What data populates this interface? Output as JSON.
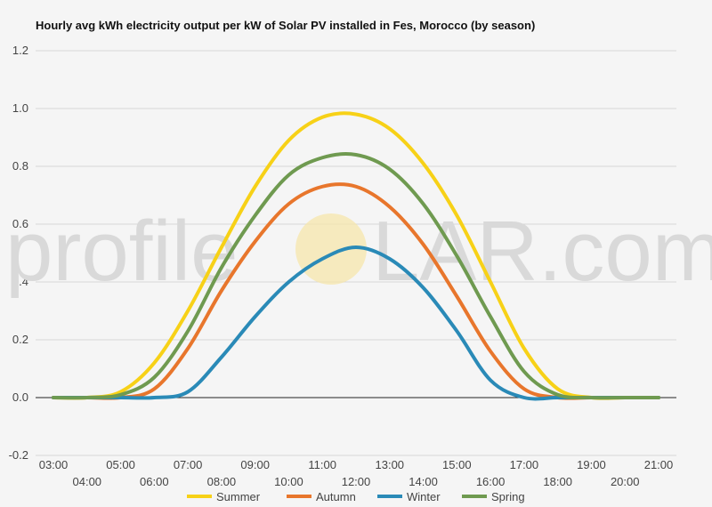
{
  "chart_data": {
    "type": "line",
    "title": "Hourly avg kWh electricity output per kW of Solar PV installed in Fes, Morocco (by season)",
    "watermark": {
      "left": "profile",
      "right": "LAR.com"
    },
    "x": [
      "03:00",
      "04:00",
      "05:00",
      "06:00",
      "07:00",
      "08:00",
      "09:00",
      "10:00",
      "11:00",
      "12:00",
      "13:00",
      "14:00",
      "15:00",
      "16:00",
      "17:00",
      "18:00",
      "19:00",
      "20:00",
      "21:00"
    ],
    "ylim": [
      -0.2,
      1.2
    ],
    "yticks": [
      "-0.2",
      "0.0",
      "0.2",
      "0.4",
      "0.6",
      "0.8",
      "1.0",
      "1.2"
    ],
    "grid": true,
    "legend_position": "bottom",
    "series": [
      {
        "name": "Summer",
        "color": "#f7d117",
        "values": [
          0,
          0,
          0.02,
          0.12,
          0.3,
          0.52,
          0.73,
          0.89,
          0.97,
          0.98,
          0.93,
          0.81,
          0.63,
          0.4,
          0.17,
          0.03,
          0,
          0,
          0
        ]
      },
      {
        "name": "Autumn",
        "color": "#e8762c",
        "values": [
          0,
          0,
          0,
          0.03,
          0.17,
          0.37,
          0.54,
          0.67,
          0.73,
          0.73,
          0.66,
          0.53,
          0.35,
          0.16,
          0.03,
          0,
          0,
          0,
          0
        ]
      },
      {
        "name": "Winter",
        "color": "#2a8ab7",
        "values": [
          0,
          0,
          0,
          0,
          0.02,
          0.14,
          0.28,
          0.4,
          0.48,
          0.52,
          0.48,
          0.38,
          0.23,
          0.06,
          0,
          0,
          0,
          0,
          0
        ]
      },
      {
        "name": "Spring",
        "color": "#6f9a50",
        "values": [
          0,
          0,
          0.01,
          0.07,
          0.23,
          0.45,
          0.63,
          0.77,
          0.83,
          0.84,
          0.79,
          0.67,
          0.49,
          0.28,
          0.09,
          0.01,
          0,
          0,
          0
        ]
      }
    ]
  }
}
